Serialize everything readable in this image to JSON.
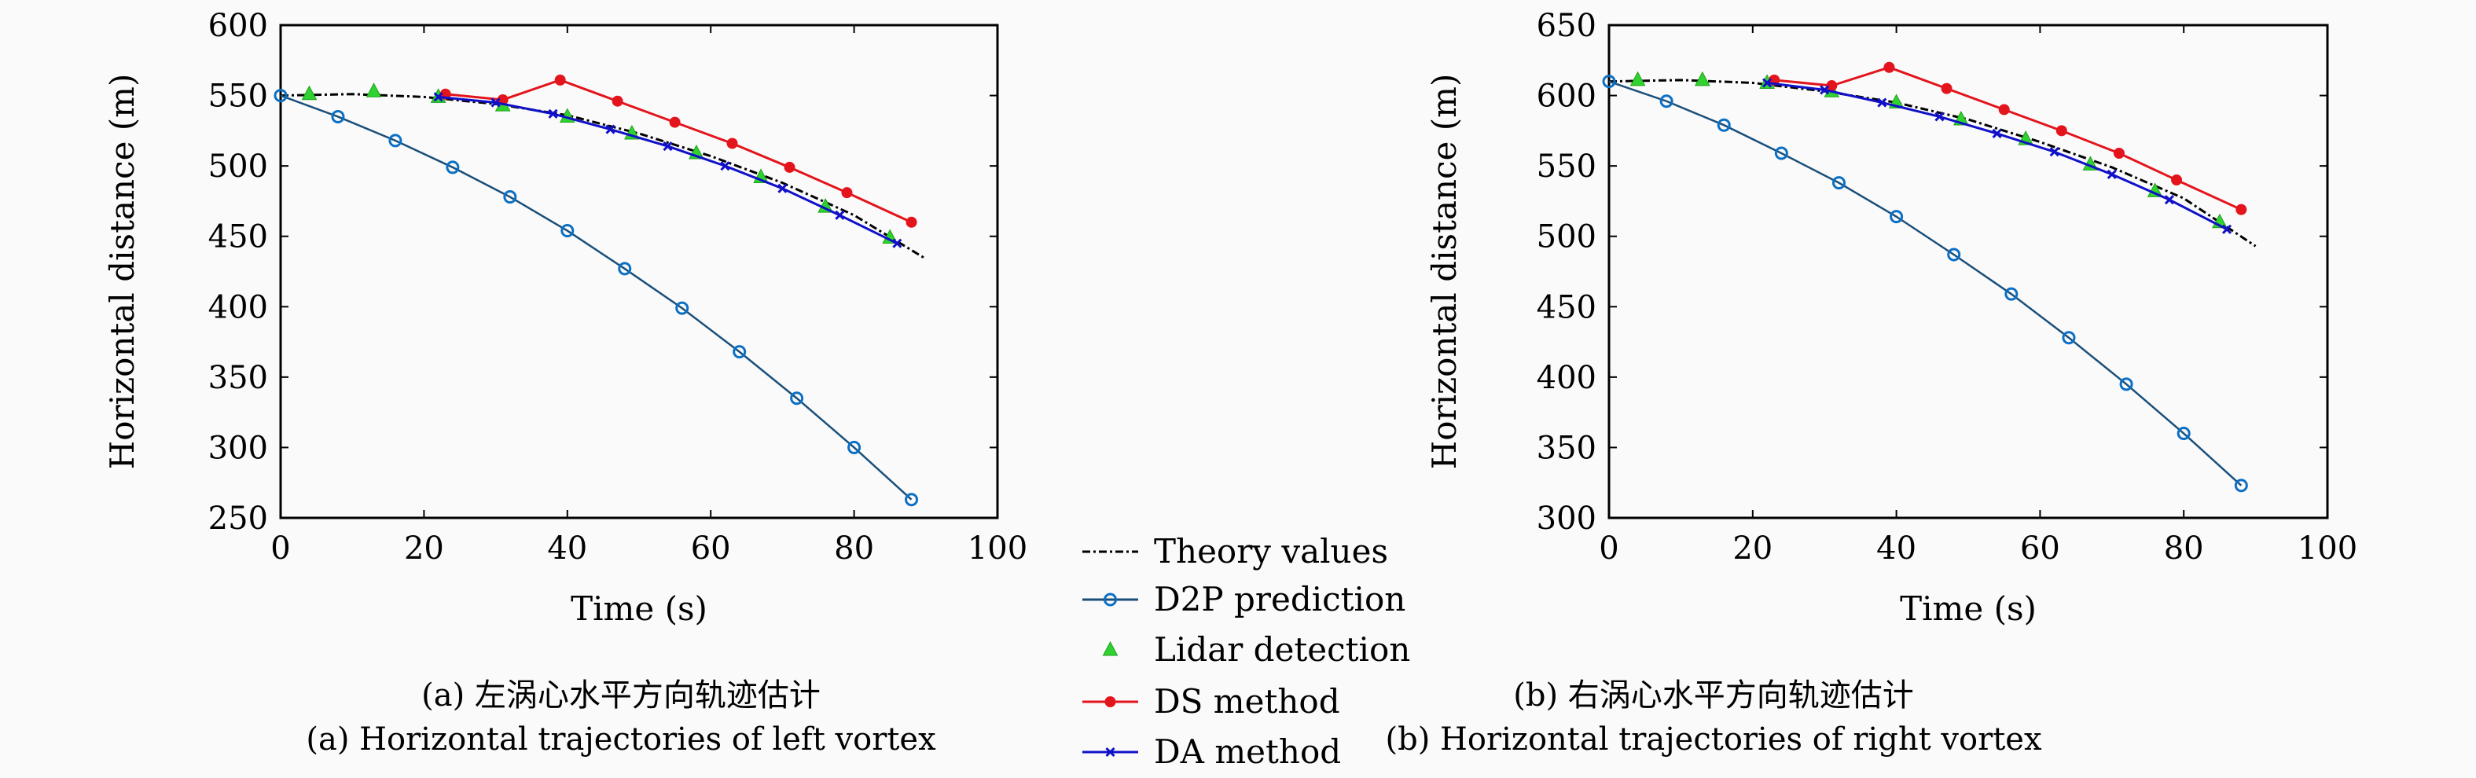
{
  "legend": {
    "entries": [
      "Theory values",
      "D2P prediction",
      "Lidar detection",
      "DS method",
      "DA method"
    ],
    "colors": {
      "theory": "#000000",
      "d2p_line": "#1a4f7a",
      "d2p_marker": "#0b6fc4",
      "lidar": "#2fd22f",
      "ds": "#e3141c",
      "da": "#1010c8"
    }
  },
  "chart_data": [
    {
      "type": "line",
      "caption_cn": "(a) 左涡心水平方向轨迹估计",
      "caption_en": "(a) Horizontal trajectories of left vortex",
      "xlabel": "Time (s)",
      "ylabel": "Horizontal distance (m)",
      "xlim": [
        0,
        100
      ],
      "ylim": [
        250,
        600
      ],
      "xticks": [
        0,
        20,
        40,
        60,
        80,
        100
      ],
      "yticks": [
        250,
        300,
        350,
        400,
        450,
        500,
        550,
        600
      ],
      "grid": false,
      "legend_position": "between-plots",
      "series": [
        {
          "name": "Theory values",
          "x": [
            0,
            10,
            20,
            30,
            40,
            50,
            60,
            70,
            80,
            90
          ],
          "y": [
            550,
            551,
            549,
            544,
            536,
            523,
            507,
            488,
            465,
            434
          ]
        },
        {
          "name": "D2P prediction",
          "x": [
            0,
            8,
            16,
            24,
            32,
            40,
            48,
            56,
            64,
            72,
            80,
            88
          ],
          "y": [
            550,
            535,
            518,
            499,
            478,
            454,
            427,
            399,
            368,
            335,
            300,
            263
          ]
        },
        {
          "name": "Lidar detection",
          "x": [
            4,
            13,
            22,
            31,
            40,
            49,
            58,
            67,
            76,
            85
          ],
          "y": [
            551,
            553,
            549,
            543,
            535,
            523,
            509,
            492,
            471,
            449
          ]
        },
        {
          "name": "DS method",
          "x": [
            23,
            31,
            39,
            47,
            55,
            63,
            71,
            79,
            88
          ],
          "y": [
            551,
            547,
            561,
            546,
            531,
            516,
            499,
            481,
            460
          ]
        },
        {
          "name": "DA method",
          "x": [
            22,
            30,
            38,
            46,
            54,
            62,
            70,
            78,
            86
          ],
          "y": [
            549,
            545,
            537,
            526,
            514,
            500,
            484,
            465,
            445
          ]
        }
      ]
    },
    {
      "type": "line",
      "caption_cn": "(b) 右涡心水平方向轨迹估计",
      "caption_en": "(b) Horizontal trajectories of right vortex",
      "xlabel": "Time (s)",
      "ylabel": "Horizontal distance (m)",
      "xlim": [
        0,
        100
      ],
      "ylim": [
        300,
        650
      ],
      "xticks": [
        0,
        20,
        40,
        60,
        80,
        100
      ],
      "yticks": [
        300,
        350,
        400,
        450,
        500,
        550,
        600,
        650
      ],
      "grid": false,
      "legend_position": "between-plots",
      "series": [
        {
          "name": "Theory values",
          "x": [
            0,
            10,
            20,
            30,
            40,
            50,
            60,
            70,
            80,
            90
          ],
          "y": [
            610,
            611,
            609,
            603,
            595,
            583,
            567,
            549,
            527,
            493
          ]
        },
        {
          "name": "D2P prediction",
          "x": [
            0,
            8,
            16,
            24,
            32,
            40,
            48,
            56,
            64,
            72,
            80,
            88
          ],
          "y": [
            610,
            596,
            579,
            559,
            538,
            514,
            487,
            459,
            428,
            395,
            360,
            323
          ]
        },
        {
          "name": "Lidar detection",
          "x": [
            4,
            13,
            22,
            31,
            40,
            49,
            58,
            67,
            76,
            85
          ],
          "y": [
            611,
            611,
            609,
            603,
            595,
            583,
            569,
            551,
            532,
            510
          ]
        },
        {
          "name": "DS method",
          "x": [
            23,
            31,
            39,
            47,
            55,
            63,
            71,
            79,
            88
          ],
          "y": [
            611,
            607,
            620,
            605,
            590,
            575,
            559,
            540,
            519
          ]
        },
        {
          "name": "DA method",
          "x": [
            22,
            30,
            38,
            46,
            54,
            62,
            70,
            78,
            86
          ],
          "y": [
            609,
            604,
            595,
            585,
            573,
            560,
            544,
            526,
            505
          ]
        }
      ]
    }
  ]
}
